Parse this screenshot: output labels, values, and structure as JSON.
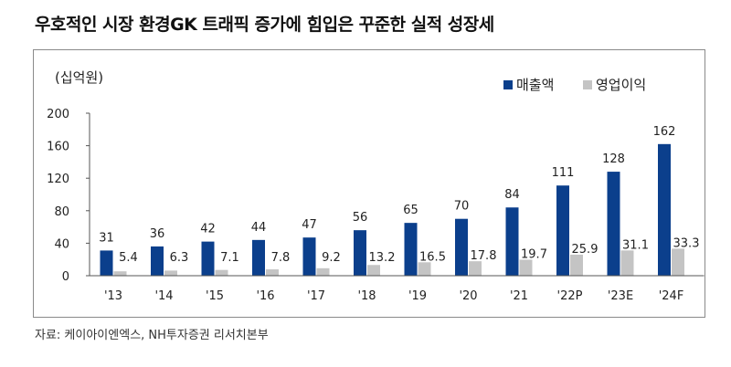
{
  "title": "우호적인 시장 환경GK 트래픽 증가에 힘입은 꾸준한 실적 성장세",
  "source": "자료: 케이아이엔엑스, NH투자증권 리서치본부",
  "colors": {
    "sales": "#0b3f8c",
    "op_profit": "#c4c4c4"
  },
  "chart_data": {
    "type": "bar",
    "unit_label": "(십억원)",
    "categories": [
      "'13",
      "'14",
      "'15",
      "'16",
      "'17",
      "'18",
      "'19",
      "'20",
      "'21",
      "'22P",
      "'23E",
      "'24F"
    ],
    "series": [
      {
        "name": "매출액",
        "values": [
          31,
          36,
          42,
          44,
          47,
          56,
          65,
          70,
          84,
          111,
          128,
          162
        ],
        "labels": [
          "31",
          "36",
          "42",
          "44",
          "47",
          "56",
          "65",
          "70",
          "84",
          "111",
          "128",
          "162"
        ]
      },
      {
        "name": "영업이익",
        "values": [
          5.4,
          6.3,
          7.1,
          7.8,
          9.2,
          13.2,
          16.5,
          17.8,
          19.7,
          25.9,
          31.1,
          33.3
        ],
        "labels": [
          "5.4",
          "6.3",
          "7.1",
          "7.8",
          "9.2",
          "13.2",
          "16.5",
          "17.8",
          "19.7",
          "25.9",
          "31.1",
          "33.3"
        ]
      }
    ],
    "y_ticks": [
      "0",
      "40",
      "80",
      "120",
      "160",
      "200"
    ],
    "ylim": [
      0,
      200
    ],
    "legend_position": "top-right",
    "grid": false
  }
}
